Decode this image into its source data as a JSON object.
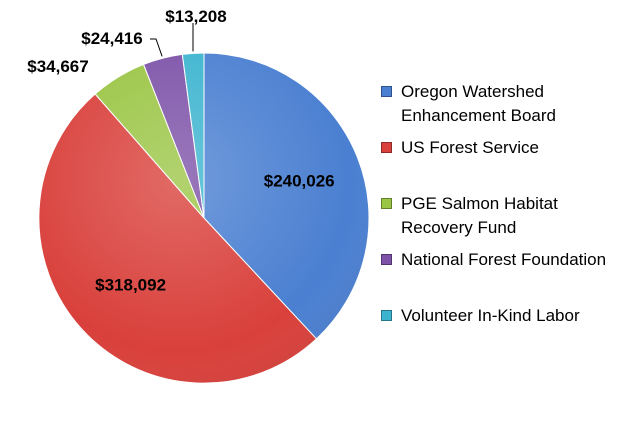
{
  "chart_data": {
    "type": "pie",
    "title": "",
    "slices": [
      {
        "name": "Oregon Watershed Enhancement Board",
        "value": 240026,
        "label": "$240,026",
        "color": "#4a7fd1"
      },
      {
        "name": "US Forest Service",
        "value": 318092,
        "label": "$318,092",
        "color": "#d9403b"
      },
      {
        "name": "PGE Salmon Habitat Recovery Fund",
        "value": 34667,
        "label": "$34,667",
        "color": "#9bc545"
      },
      {
        "name": "National Forest Foundation",
        "value": 24416,
        "label": "$24,416",
        "color": "#7d52a8"
      },
      {
        "name": "Volunteer In-Kind Labor",
        "value": 13208,
        "label": "$13,208",
        "color": "#3cb4cf"
      }
    ],
    "legend_position": "right"
  }
}
